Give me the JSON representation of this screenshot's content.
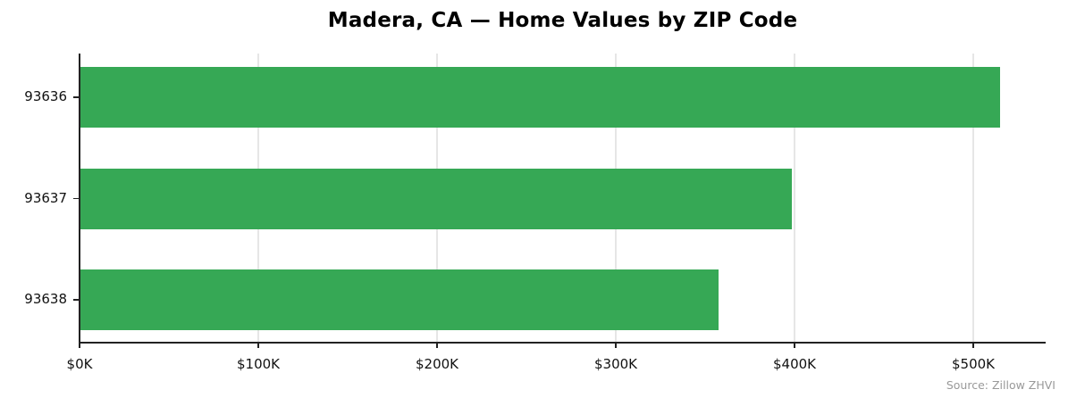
{
  "title": "Madera, CA — Home Values by ZIP Code",
  "source": "Source: Zillow ZHVI",
  "bar_color": "#36a855",
  "grid_color": "#e6e6e6",
  "chart_data": {
    "type": "bar",
    "orientation": "horizontal",
    "title": "Madera, CA — Home Values by ZIP Code",
    "xlabel": "",
    "ylabel": "",
    "categories": [
      "93636",
      "93637",
      "93638"
    ],
    "values": [
      515000,
      398500,
      357500
    ],
    "xlim": [
      0,
      540000
    ],
    "xticks": [
      0,
      100000,
      200000,
      300000,
      400000,
      500000
    ],
    "xtick_labels": [
      "$0K",
      "$100K",
      "$200K",
      "$300K",
      "$400K",
      "$500K"
    ],
    "grid": "vertical",
    "legend": null,
    "annotation": "Source: Zillow ZHVI",
    "color": "#36a855"
  }
}
